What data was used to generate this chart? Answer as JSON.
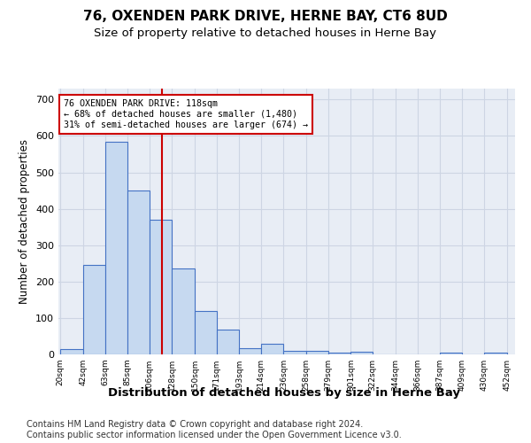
{
  "title": "76, OXENDEN PARK DRIVE, HERNE BAY, CT6 8UD",
  "subtitle": "Size of property relative to detached houses in Herne Bay",
  "xlabel": "Distribution of detached houses by size in Herne Bay",
  "ylabel": "Number of detached properties",
  "bar_edges": [
    20,
    42,
    63,
    85,
    106,
    128,
    150,
    171,
    193,
    214,
    236,
    258,
    279,
    301,
    322,
    344,
    366,
    387,
    409,
    430,
    452
  ],
  "bar_values": [
    15,
    245,
    585,
    450,
    370,
    235,
    120,
    68,
    18,
    28,
    10,
    10,
    5,
    8,
    0,
    0,
    0,
    5,
    0,
    5
  ],
  "bar_color": "#c6d9f0",
  "bar_edgecolor": "#4472c4",
  "property_size": 118,
  "vline_color": "#cc0000",
  "annotation_line1": "76 OXENDEN PARK DRIVE: 118sqm",
  "annotation_line2": "← 68% of detached houses are smaller (1,480)",
  "annotation_line3": "31% of semi-detached houses are larger (674) →",
  "annotation_box_edgecolor": "#cc0000",
  "ylim": [
    0,
    730
  ],
  "yticks": [
    0,
    100,
    200,
    300,
    400,
    500,
    600,
    700
  ],
  "tick_labels": [
    "20sqm",
    "42sqm",
    "63sqm",
    "85sqm",
    "106sqm",
    "128sqm",
    "150sqm",
    "171sqm",
    "193sqm",
    "214sqm",
    "236sqm",
    "258sqm",
    "279sqm",
    "301sqm",
    "322sqm",
    "344sqm",
    "366sqm",
    "387sqm",
    "409sqm",
    "430sqm",
    "452sqm"
  ],
  "grid_color": "#cdd5e3",
  "bg_color": "#e8edf5",
  "footer_line1": "Contains HM Land Registry data © Crown copyright and database right 2024.",
  "footer_line2": "Contains public sector information licensed under the Open Government Licence v3.0.",
  "title_fontsize": 11,
  "subtitle_fontsize": 9.5,
  "xlabel_fontsize": 9.5,
  "ylabel_fontsize": 8.5,
  "footer_fontsize": 7
}
